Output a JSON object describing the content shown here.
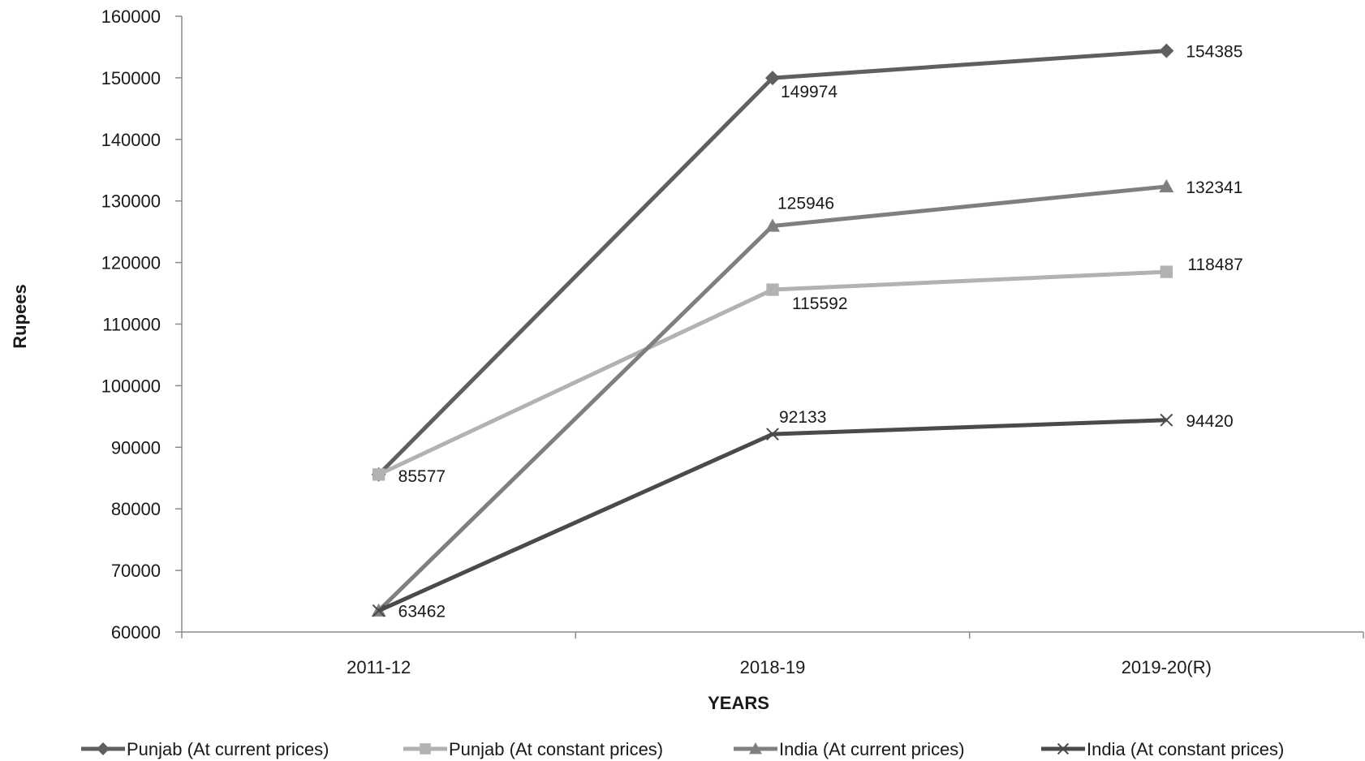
{
  "chart_data": {
    "type": "line",
    "categories": [
      "2011-12",
      "2018-19",
      "2019-20(R)"
    ],
    "xlabel": "YEARS",
    "ylabel": "Rupees",
    "ylim": [
      60000,
      160000
    ],
    "yticks": [
      60000,
      70000,
      80000,
      90000,
      100000,
      110000,
      120000,
      130000,
      140000,
      150000,
      160000
    ],
    "grid": false,
    "legend_position": "bottom",
    "series": [
      {
        "name": "Punjab (At current prices)",
        "values": [
          85577,
          149974,
          154385
        ],
        "color": "#5f5f5f",
        "marker": "diamond"
      },
      {
        "name": "Punjab (At constant prices)",
        "values": [
          85577,
          115592,
          118487
        ],
        "color": "#b2b2b2",
        "marker": "square"
      },
      {
        "name": "India (At current prices)",
        "values": [
          63462,
          125946,
          132341
        ],
        "color": "#7f7f7f",
        "marker": "triangle"
      },
      {
        "name": "India (At constant prices)",
        "values": [
          63462,
          92133,
          94420
        ],
        "color": "#4a4a4a",
        "marker": "x"
      }
    ],
    "data_labels": [
      {
        "series": 0,
        "point": 1,
        "text": "149974"
      },
      {
        "series": 0,
        "point": 2,
        "text": "154385"
      },
      {
        "series": 1,
        "point": 0,
        "text": "85577"
      },
      {
        "series": 1,
        "point": 1,
        "text": "115592"
      },
      {
        "series": 1,
        "point": 2,
        "text": "118487"
      },
      {
        "series": 2,
        "point": 1,
        "text": "125946"
      },
      {
        "series": 2,
        "point": 2,
        "text": "132341"
      },
      {
        "series": 3,
        "point": 0,
        "text": "63462"
      },
      {
        "series": 3,
        "point": 1,
        "text": "92133"
      },
      {
        "series": 3,
        "point": 2,
        "text": "94420"
      }
    ]
  }
}
